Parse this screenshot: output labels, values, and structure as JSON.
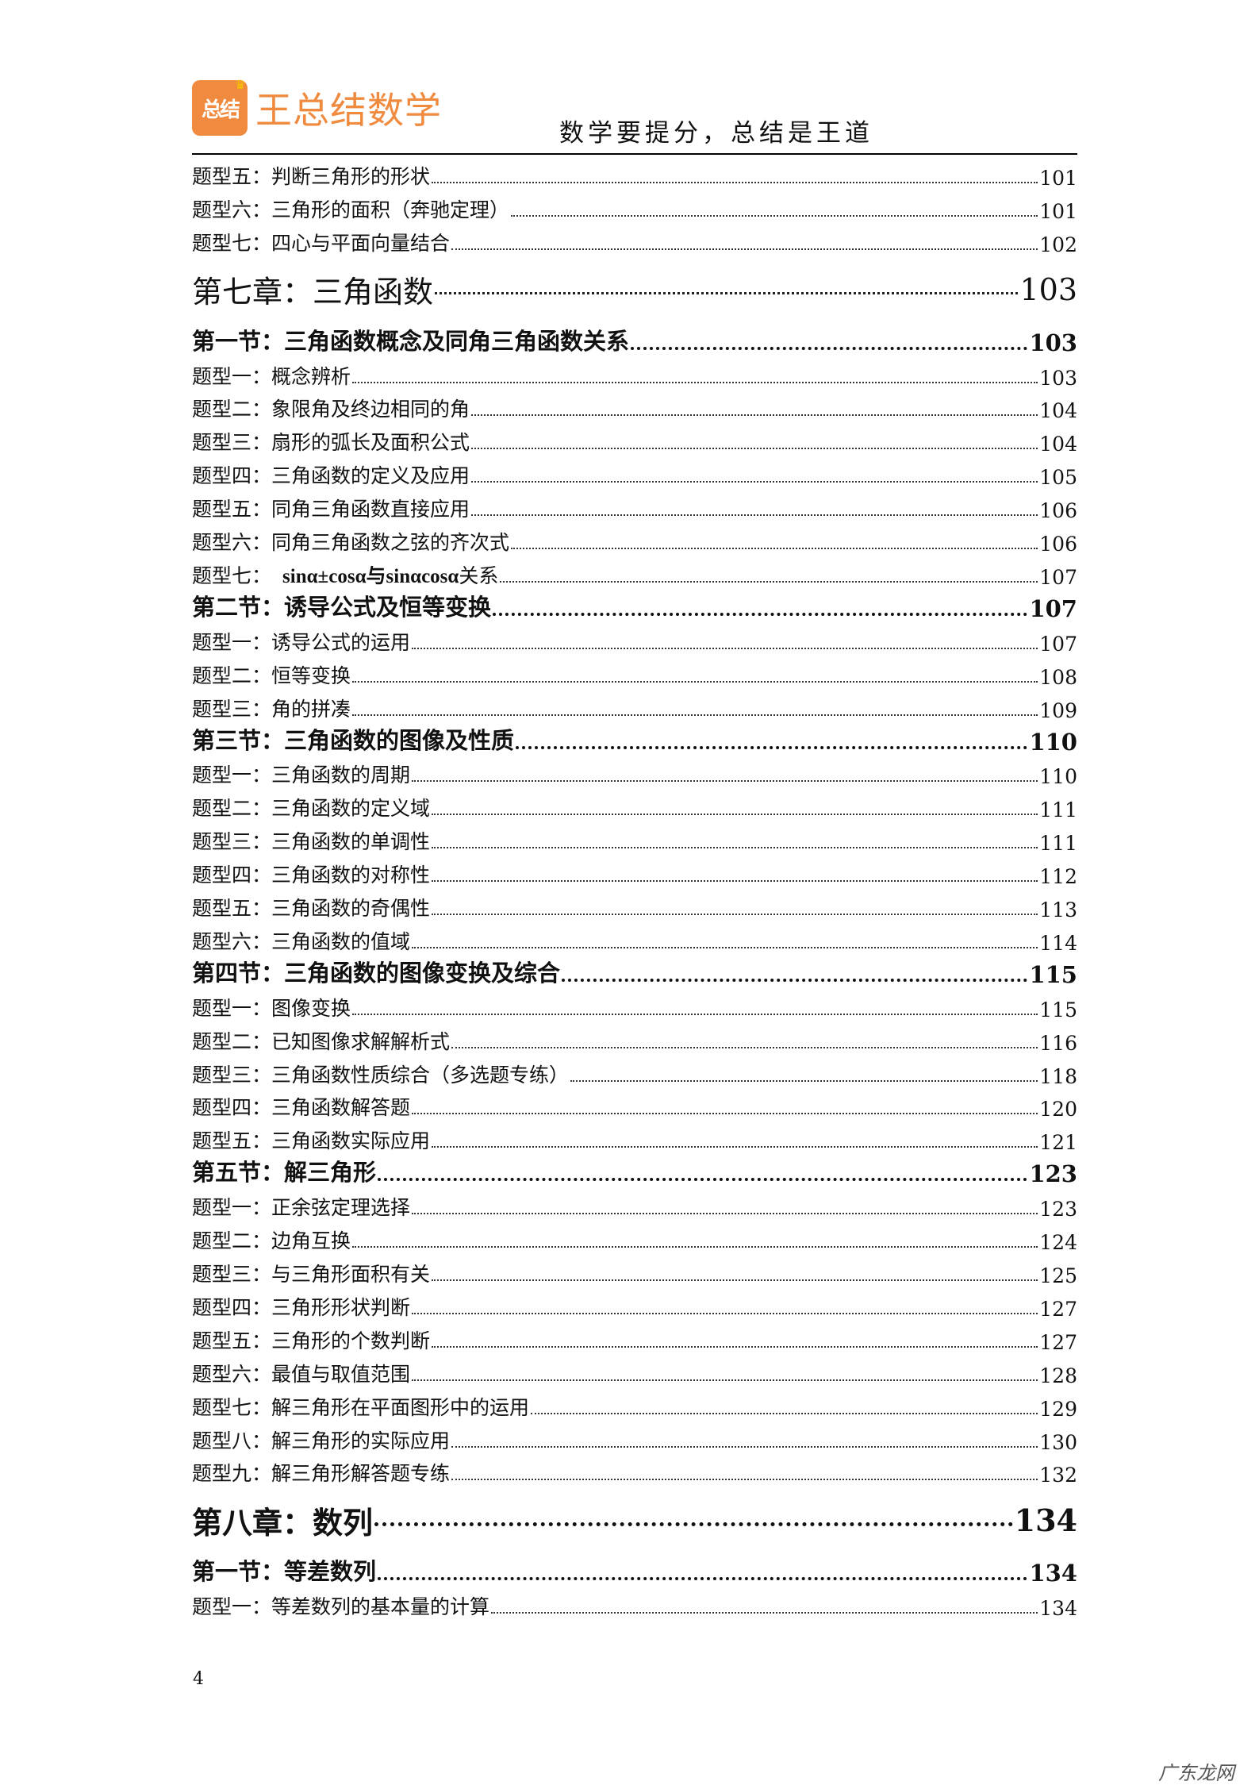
{
  "header": {
    "logo_badge": "总结",
    "logo_text": "王总结数学",
    "slogan": "数学要提分，总结是王道"
  },
  "toc": [
    {
      "type": "topic",
      "label": "题型五：判断三角形的形状",
      "page": "101"
    },
    {
      "type": "topic",
      "label": "题型六：三角形的面积（奔驰定理）",
      "page": "101"
    },
    {
      "type": "topic",
      "label": "题型七：四心与平面向量结合",
      "page": "102"
    },
    {
      "type": "chapter",
      "label": "第七章：三角函数",
      "page": "103"
    },
    {
      "type": "section",
      "label": "第一节：三角函数概念及同角三角函数关系",
      "page": "103"
    },
    {
      "type": "topic",
      "label": "题型一：概念辨析",
      "page": "103"
    },
    {
      "type": "topic",
      "label": "题型二：象限角及终边相同的角",
      "page": "104"
    },
    {
      "type": "topic",
      "label": "题型三：扇形的弧长及面积公式",
      "page": "104"
    },
    {
      "type": "topic",
      "label": "题型四：三角函数的定义及应用",
      "page": "105"
    },
    {
      "type": "topic",
      "label": "题型五：同角三角函数直接应用",
      "page": "106"
    },
    {
      "type": "topic",
      "label": "题型六：同角三角函数之弦的齐次式",
      "page": "106"
    },
    {
      "type": "topic",
      "label": "题型七：",
      "math": "sinα±cosα与sinαcosα",
      "suffix": "关系",
      "page": "107"
    },
    {
      "type": "section",
      "label": "第二节：诱导公式及恒等变换",
      "page": "107"
    },
    {
      "type": "topic",
      "label": "题型一：诱导公式的运用",
      "page": "107"
    },
    {
      "type": "topic",
      "label": "题型二：恒等变换",
      "page": "108"
    },
    {
      "type": "topic",
      "label": "题型三：角的拼凑",
      "page": "109"
    },
    {
      "type": "section",
      "label": "第三节：三角函数的图像及性质",
      "page": "110"
    },
    {
      "type": "topic",
      "label": "题型一：三角函数的周期",
      "page": "110"
    },
    {
      "type": "topic",
      "label": "题型二：三角函数的定义域",
      "page": "111"
    },
    {
      "type": "topic",
      "label": "题型三：三角函数的单调性",
      "page": "111"
    },
    {
      "type": "topic",
      "label": "题型四：三角函数的对称性",
      "page": "112"
    },
    {
      "type": "topic",
      "label": "题型五：三角函数的奇偶性",
      "page": "113"
    },
    {
      "type": "topic",
      "label": "题型六：三角函数的值域",
      "page": "114"
    },
    {
      "type": "section",
      "label": "第四节：三角函数的图像变换及综合",
      "page": "115"
    },
    {
      "type": "topic",
      "label": "题型一：图像变换",
      "page": "115"
    },
    {
      "type": "topic",
      "label": "题型二：已知图像求解解析式",
      "page": "116"
    },
    {
      "type": "topic",
      "label": "题型三：三角函数性质综合（多选题专练）",
      "page": "118"
    },
    {
      "type": "topic",
      "label": "题型四：三角函数解答题",
      "page": "120"
    },
    {
      "type": "topic",
      "label": "题型五：三角函数实际应用",
      "page": "121"
    },
    {
      "type": "section",
      "label": "第五节：解三角形",
      "page": "123"
    },
    {
      "type": "topic",
      "label": "题型一：正余弦定理选择",
      "page": "123"
    },
    {
      "type": "topic",
      "label": "题型二：边角互换",
      "page": "124"
    },
    {
      "type": "topic",
      "label": "题型三：与三角形面积有关",
      "page": "125"
    },
    {
      "type": "topic",
      "label": "题型四：三角形形状判断",
      "page": "127"
    },
    {
      "type": "topic",
      "label": "题型五：三角形的个数判断",
      "page": "127"
    },
    {
      "type": "topic",
      "label": "题型六：最值与取值范围",
      "page": "128"
    },
    {
      "type": "topic",
      "label": "题型七：解三角形在平面图形中的运用",
      "page": "129"
    },
    {
      "type": "topic",
      "label": "题型八：解三角形的实际应用",
      "page": "130"
    },
    {
      "type": "topic",
      "label": "题型九：解三角形解答题专练",
      "page": "132"
    },
    {
      "type": "chapter",
      "label": "第八章：数列",
      "page": "134",
      "bold": true
    },
    {
      "type": "section",
      "label": "第一节：等差数列",
      "page": "134"
    },
    {
      "type": "topic",
      "label": "题型一：等差数列的基本量的计算",
      "page": "134"
    }
  ],
  "footer": {
    "page_number": "4",
    "watermark": "广东龙网"
  }
}
